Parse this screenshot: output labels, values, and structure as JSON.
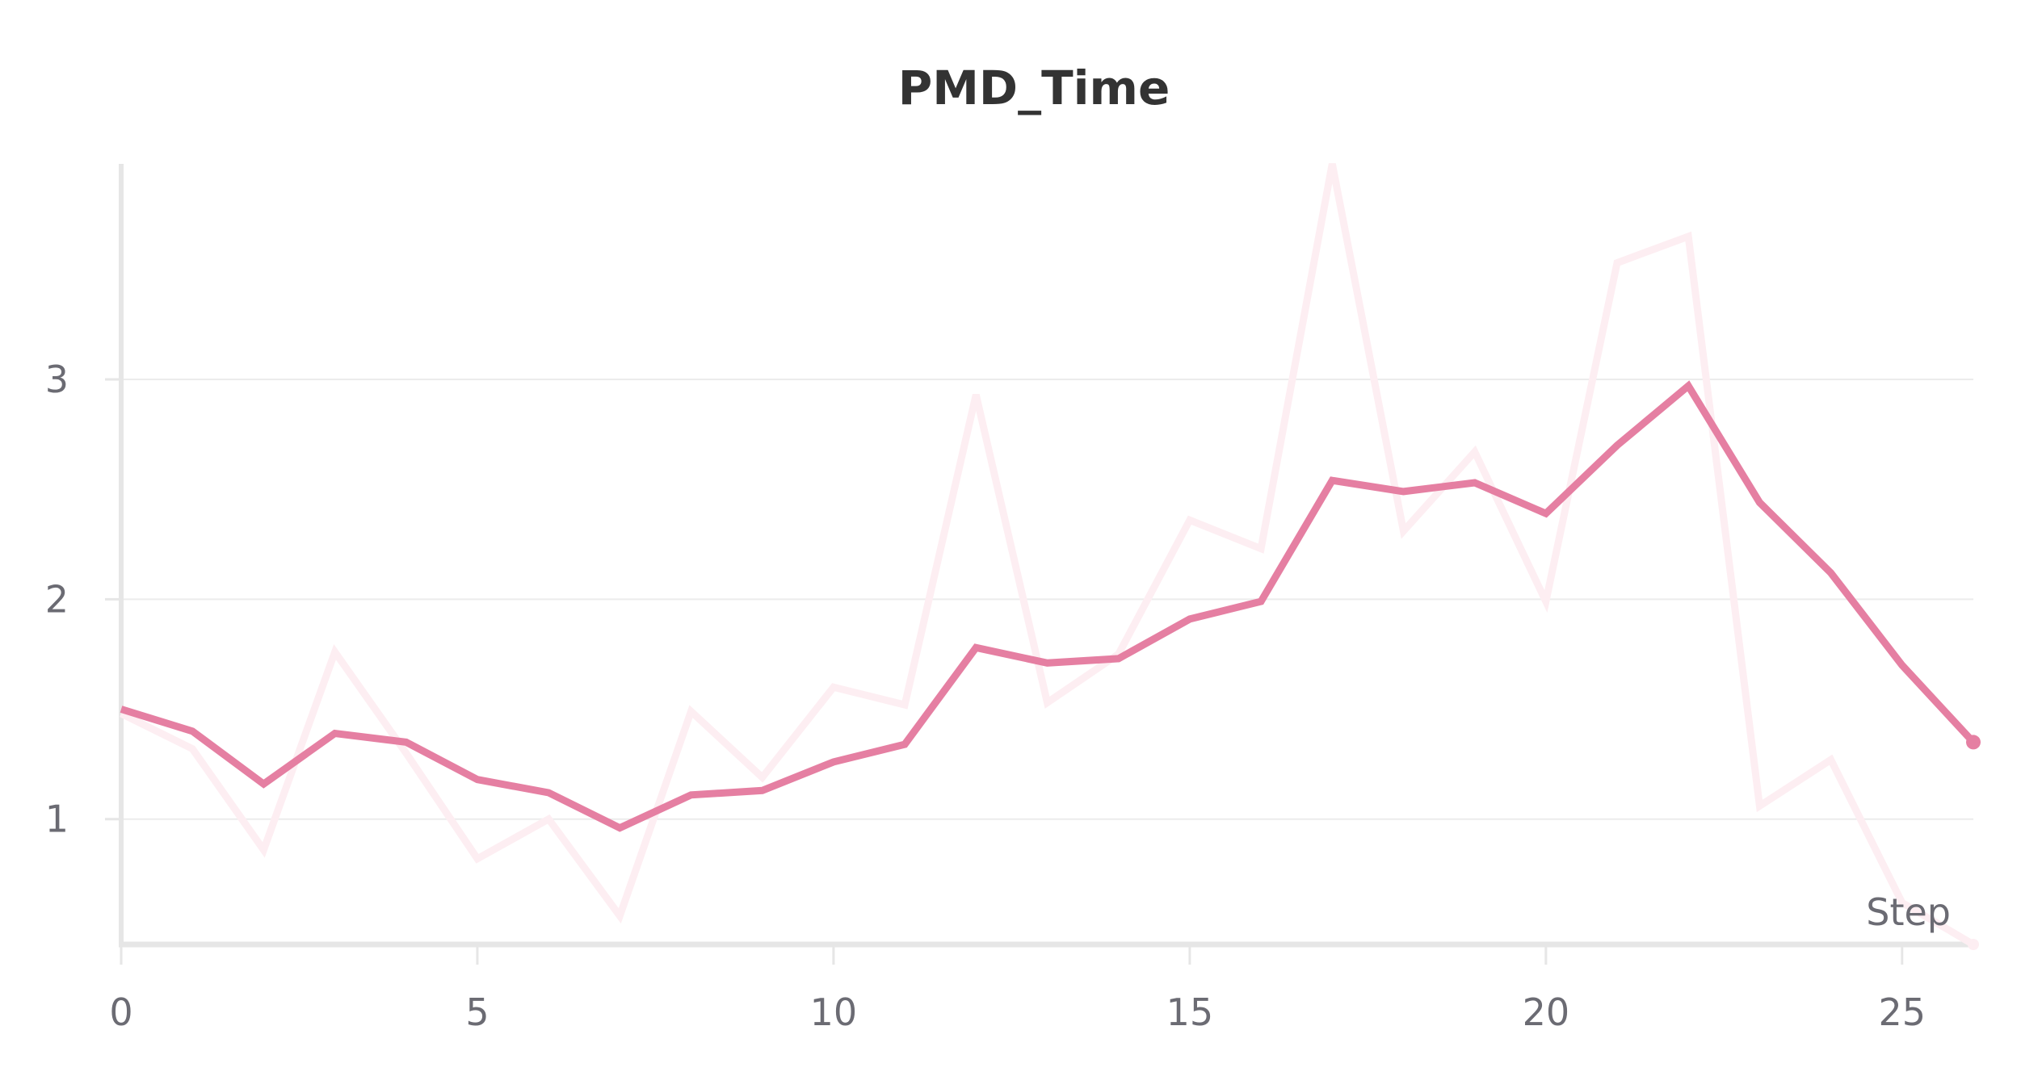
{
  "chart_data": {
    "type": "line",
    "title": "PMD_Time",
    "xlabel": "Step",
    "ylabel": "",
    "xlim": [
      0,
      26
    ],
    "ylim": [
      0.43,
      3.98
    ],
    "x_ticks": [
      0,
      5,
      10,
      15,
      20,
      25
    ],
    "y_ticks": [
      1,
      2,
      3
    ],
    "grid": true,
    "legend": "none",
    "colors": {
      "raw": "#fdeef2",
      "smoothed": "#e57fa2",
      "axis": "#e6e6e6",
      "grid": "#ececec"
    },
    "x": [
      0,
      1,
      2,
      3,
      4,
      5,
      6,
      7,
      8,
      9,
      10,
      11,
      12,
      13,
      14,
      15,
      16,
      17,
      18,
      19,
      20,
      21,
      22,
      23,
      24,
      25,
      26
    ],
    "series": [
      {
        "role": "raw",
        "values": [
          1.48,
          1.32,
          0.86,
          1.76,
          1.3,
          0.82,
          1.0,
          0.56,
          1.49,
          1.19,
          1.6,
          1.52,
          2.93,
          1.53,
          1.75,
          2.36,
          2.23,
          3.98,
          2.31,
          2.67,
          1.99,
          3.53,
          3.65,
          1.06,
          1.27,
          0.62,
          0.43
        ]
      },
      {
        "role": "smoothed",
        "values": [
          1.5,
          1.4,
          1.16,
          1.39,
          1.35,
          1.18,
          1.12,
          0.96,
          1.11,
          1.13,
          1.26,
          1.34,
          1.78,
          1.71,
          1.73,
          1.91,
          1.99,
          2.54,
          2.49,
          2.53,
          2.39,
          2.7,
          2.97,
          2.44,
          2.12,
          1.7,
          1.35
        ]
      }
    ]
  }
}
